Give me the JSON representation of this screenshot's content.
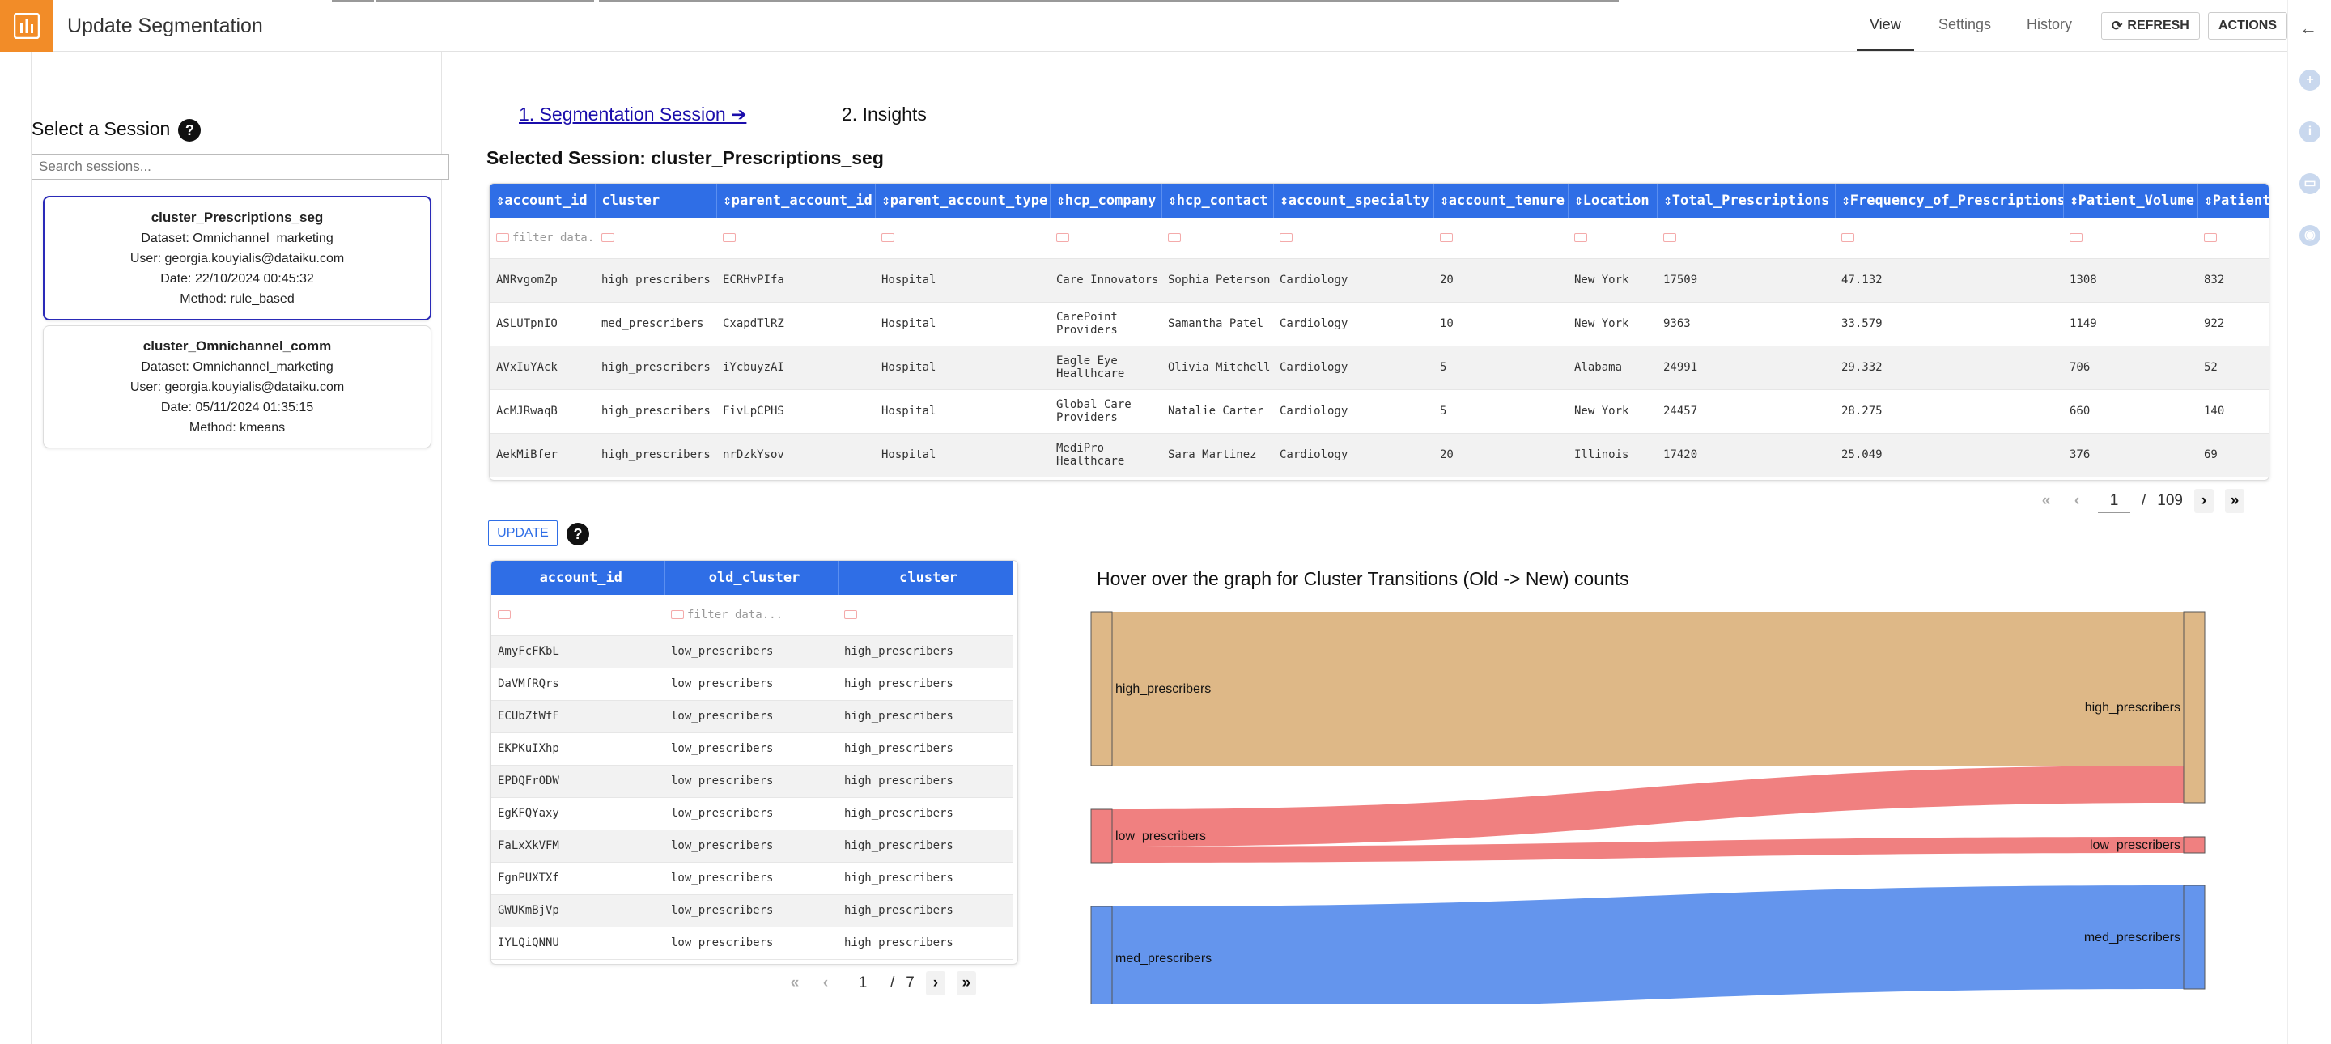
{
  "header": {
    "app_title": "Update Segmentation",
    "nav": [
      "View",
      "Settings",
      "History"
    ],
    "refresh_label": "REFRESH",
    "actions_label": "ACTIONS"
  },
  "sidebar": {
    "title": "Select a Session",
    "search_placeholder": "Search sessions...",
    "sessions": [
      {
        "name": "cluster_Prescriptions_seg",
        "dataset": "Dataset: Omnichannel_marketing",
        "user": "User: georgia.kouyialis@dataiku.com",
        "date": "Date: 22/10/2024 00:45:32",
        "method": "Method: rule_based"
      },
      {
        "name": "cluster_Omnichannel_comm",
        "dataset": "Dataset: Omnichannel_marketing",
        "user": "User: georgia.kouyialis@dataiku.com",
        "date": "Date: 05/11/2024 01:35:15",
        "method": "Method: kmeans"
      }
    ]
  },
  "steps": {
    "step1": "1. Segmentation Session ➔",
    "step2": "2. Insights"
  },
  "selected_session": "Selected Session: cluster_Prescriptions_seg",
  "main_table": {
    "columns": [
      "⇕account_id",
      "cluster",
      "⇕parent_account_id",
      "⇕parent_account_type",
      "⇕hcp_company",
      "⇕hcp_contact",
      "⇕account_specialty",
      "⇕account_tenure",
      "⇕Location",
      "⇕Total_Prescriptions",
      "⇕Frequency_of_Prescriptions",
      "⇕Patient_Volume",
      "⇕Patients_"
    ],
    "filter_placeholder": "filter data.",
    "rows": [
      [
        "ANRvgomZp",
        "high_prescribers",
        "ECRHvPIfa",
        "Hospital",
        "Care Innovators",
        "Sophia Peterson",
        "Cardiology",
        "20",
        "New York",
        "17509",
        "47.132",
        "1308",
        "832"
      ],
      [
        "ASLUTpnIO",
        "med_prescribers",
        "CxapdTlRZ",
        "Hospital",
        "CarePoint Providers",
        "Samantha Patel",
        "Cardiology",
        "10",
        "New York",
        "9363",
        "33.579",
        "1149",
        "922"
      ],
      [
        "AVxIuYAck",
        "high_prescribers",
        "iYcbuyzAI",
        "Hospital",
        "Eagle Eye Healthcare",
        "Olivia Mitchell",
        "Cardiology",
        "5",
        "Alabama",
        "24991",
        "29.332",
        "706",
        "52"
      ],
      [
        "AcMJRwaqB",
        "high_prescribers",
        "FivLpCPHS",
        "Hospital",
        "Global Care Providers",
        "Natalie Carter",
        "Cardiology",
        "5",
        "New York",
        "24457",
        "28.275",
        "660",
        "140"
      ],
      [
        "AekMiBfer",
        "high_prescribers",
        "nrDzkYsov",
        "Hospital",
        "MediPro Healthcare",
        "Sara Martinez",
        "Cardiology",
        "20",
        "Illinois",
        "17420",
        "25.049",
        "376",
        "69"
      ]
    ],
    "page": "1",
    "sep": "/",
    "total_pages": "109"
  },
  "update_label": "UPDATE",
  "update_table": {
    "columns": [
      "account_id",
      "old_cluster",
      "cluster"
    ],
    "filter_placeholder": "filter data...",
    "rows": [
      [
        "AmyFcFKbL",
        "low_prescribers",
        "high_prescribers"
      ],
      [
        "DaVMfRQrs",
        "low_prescribers",
        "high_prescribers"
      ],
      [
        "ECUbZtWfF",
        "low_prescribers",
        "high_prescribers"
      ],
      [
        "EKPKuIXhp",
        "low_prescribers",
        "high_prescribers"
      ],
      [
        "EPDQFrODW",
        "low_prescribers",
        "high_prescribers"
      ],
      [
        "EgKFQYaxy",
        "low_prescribers",
        "high_prescribers"
      ],
      [
        "FaLxXkVFM",
        "low_prescribers",
        "high_prescribers"
      ],
      [
        "FgnPUXTXf",
        "low_prescribers",
        "high_prescribers"
      ],
      [
        "GWUKmBjVp",
        "low_prescribers",
        "high_prescribers"
      ],
      [
        "IYLQiQNNU",
        "low_prescribers",
        "high_prescribers"
      ]
    ],
    "page": "1",
    "sep": "/",
    "total_pages": "7"
  },
  "sankey": {
    "title": "Hover over the graph for Cluster Transitions (Old -> New) counts",
    "source_nodes": [
      "high_prescribers",
      "low_prescribers",
      "med_prescribers"
    ],
    "target_nodes": [
      "high_prescribers",
      "low_prescribers",
      "med_prescribers"
    ],
    "colors": {
      "high_prescribers": "#deb887",
      "low_prescribers": "#f08080",
      "med_prescribers": "#6495ed"
    }
  },
  "chart_data": {
    "type": "sankey",
    "title": "Hover over the graph for Cluster Transitions (Old -> New) counts",
    "links": [
      {
        "source": "high_prescribers",
        "target": "high_prescribers",
        "value": 190
      },
      {
        "source": "low_prescribers",
        "target": "high_prescribers",
        "value": 46
      },
      {
        "source": "low_prescribers",
        "target": "low_prescribers",
        "value": 20
      },
      {
        "source": "med_prescribers",
        "target": "med_prescribers",
        "value": 128
      }
    ]
  }
}
